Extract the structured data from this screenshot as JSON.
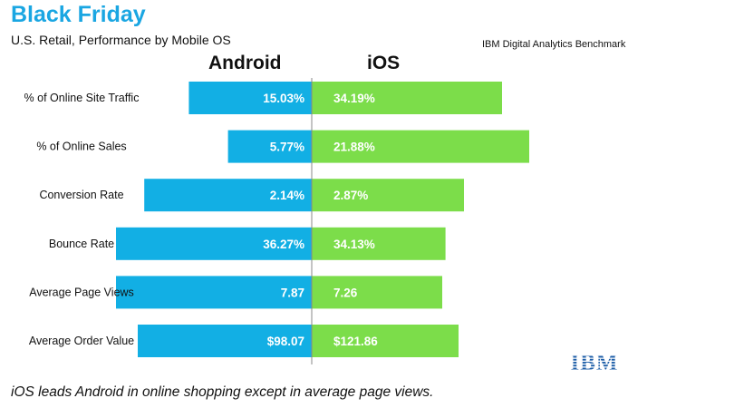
{
  "title": "Black Friday",
  "subtitle": "U.S. Retail, Performance by Mobile OS",
  "source": "IBM Digital Analytics Benchmark",
  "caption": "iOS leads Android in online shopping except in average page views.",
  "logo_text": "IBM",
  "colors": {
    "android": "#12afe4",
    "ios": "#7cdd4a",
    "title": "#1aa6e2",
    "axis": "#888888"
  },
  "chart_data": {
    "type": "bar",
    "orientation": "horizontal-diverging",
    "title": "Black Friday",
    "subtitle": "U.S. Retail, Performance by Mobile OS",
    "categories": [
      "% of Online Site Traffic",
      "% of Online Sales",
      "Conversion Rate",
      "Bounce Rate",
      "Average Page Views",
      "Average Order Value"
    ],
    "series": [
      {
        "name": "Android",
        "side": "left",
        "value_labels": [
          "15.03%",
          "5.77%",
          "2.14%",
          "36.27%",
          "7.87",
          "$98.07"
        ],
        "relative_length": [
          0.565,
          0.385,
          0.77,
          0.9,
          0.9,
          0.8
        ]
      },
      {
        "name": "iOS",
        "side": "right",
        "value_labels": [
          "34.19%",
          "21.88%",
          "2.87%",
          "34.13%",
          "7.26",
          "$121.86"
        ],
        "relative_length": [
          0.875,
          1.0,
          0.7,
          0.615,
          0.6,
          0.675
        ]
      }
    ]
  }
}
